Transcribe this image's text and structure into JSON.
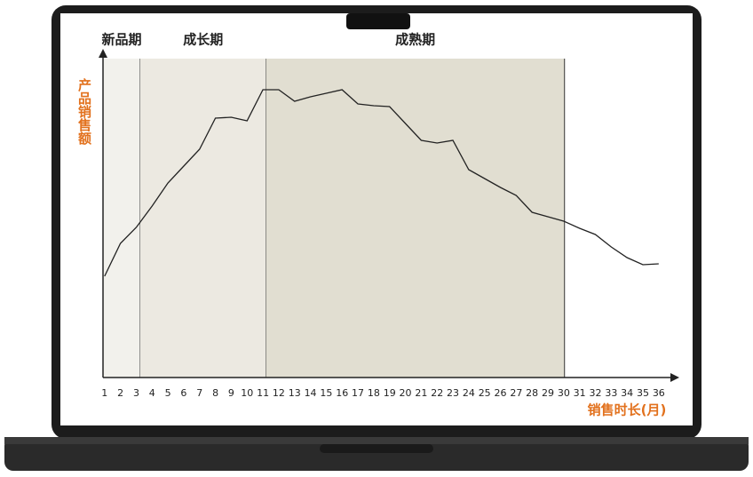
{
  "chart_data": {
    "type": "line",
    "x_label": "销售时长(月)",
    "y_label": "产品销售额",
    "x": [
      1,
      2,
      3,
      4,
      5,
      6,
      7,
      8,
      9,
      10,
      11,
      12,
      13,
      14,
      15,
      16,
      17,
      18,
      19,
      20,
      21,
      22,
      23,
      24,
      25,
      26,
      27,
      28,
      29,
      30,
      31,
      32,
      33,
      34,
      35,
      36
    ],
    "values": [
      114,
      151,
      169,
      193,
      219,
      238,
      257,
      292,
      293,
      289,
      324,
      324,
      311,
      316,
      320,
      324,
      308,
      306,
      305,
      286,
      267,
      264,
      267,
      234,
      224,
      214,
      205,
      186,
      181,
      176,
      168,
      161,
      147,
      135,
      127,
      128
    ],
    "color": "#222222",
    "xlim": [
      0.9,
      37.3
    ],
    "xticks": [
      1,
      2,
      3,
      4,
      5,
      6,
      7,
      8,
      9,
      10,
      11,
      12,
      13,
      14,
      15,
      16,
      17,
      18,
      19,
      20,
      21,
      22,
      23,
      24,
      25,
      26,
      27,
      28,
      29,
      30,
      31,
      32,
      33,
      34,
      35,
      36
    ],
    "ylim": [
      0,
      370
    ],
    "phases": [
      {
        "label": "新品期",
        "start": 0.9,
        "end": 3.25,
        "color": "#f2f1ec"
      },
      {
        "label": "成长期",
        "start": 3.25,
        "end": 11.2,
        "color": "#ece9e1"
      },
      {
        "label": "成熟期",
        "start": 11.2,
        "end": 30.05,
        "color": "#e1ded1"
      }
    ]
  }
}
